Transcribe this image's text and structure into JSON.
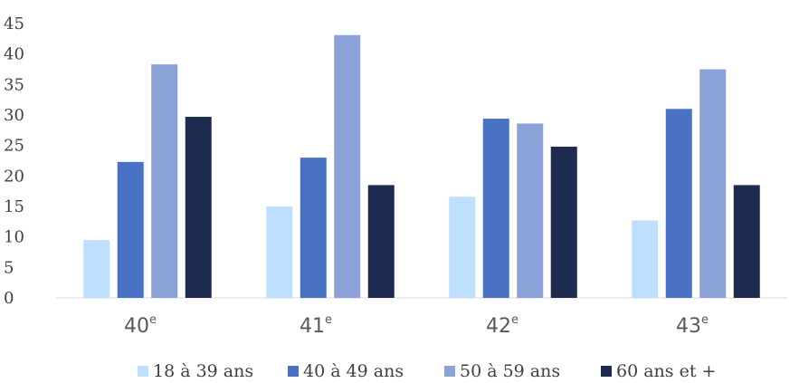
{
  "chart_data": {
    "type": "bar",
    "title": "",
    "xlabel": "",
    "ylabel": "",
    "categories": [
      {
        "base": "40",
        "sup": "e"
      },
      {
        "base": "41",
        "sup": "e"
      },
      {
        "base": "42",
        "sup": "e"
      },
      {
        "base": "43",
        "sup": "e"
      }
    ],
    "series": [
      {
        "name": "18 à 39 ans",
        "color": "#bfdfff",
        "values": [
          9.5,
          15.0,
          16.6,
          12.7
        ]
      },
      {
        "name": "40 à 49 ans",
        "color": "#4a72c4",
        "values": [
          22.3,
          23.0,
          29.4,
          31.0
        ]
      },
      {
        "name": "50 à 59 ans",
        "color": "#8aa2d8",
        "values": [
          38.3,
          43.1,
          28.6,
          37.5
        ]
      },
      {
        "name": "60 ans et +",
        "color": "#1c2b4f",
        "values": [
          29.7,
          18.5,
          24.8,
          18.5
        ]
      }
    ],
    "ylim": [
      0,
      45
    ],
    "yticks": [
      0,
      5,
      10,
      15,
      20,
      25,
      30,
      35,
      40,
      45
    ],
    "grid": false,
    "legend": "bottom"
  }
}
